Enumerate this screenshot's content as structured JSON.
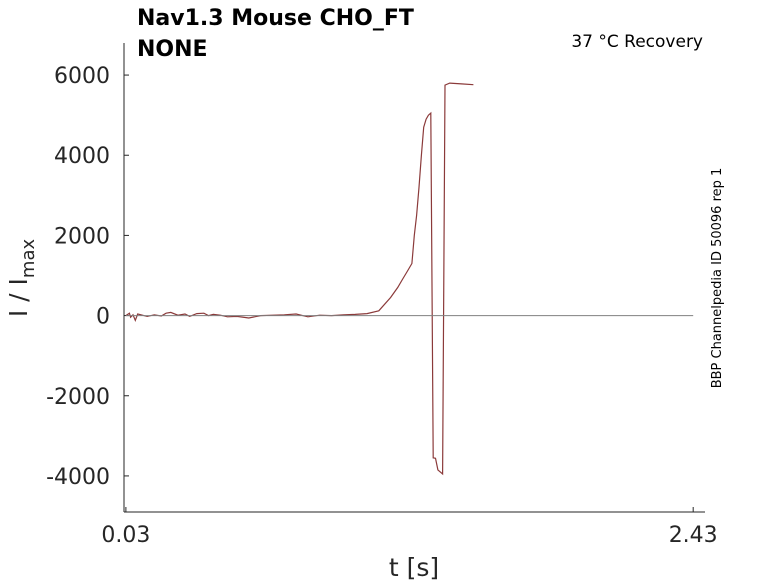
{
  "header": {
    "title_line1": "Nav1.3  Mouse  CHO_FT",
    "title_line2": "NONE",
    "condition": "37 °C  Recovery",
    "side_label": "BBP Channelpedia ID 50096 rep 1"
  },
  "chart_data": {
    "type": "line",
    "xlabel": "t [s]",
    "ylabel_main": "I / I",
    "ylabel_sub": "max",
    "xlim": [
      0.022,
      2.48
    ],
    "ylim": [
      -4900,
      6800
    ],
    "xticks": [
      {
        "value": 0.03,
        "label": "0.03"
      },
      {
        "value": 2.43,
        "label": "2.43"
      }
    ],
    "yticks": [
      {
        "value": 6000,
        "label": "6000"
      },
      {
        "value": 4000,
        "label": "4000"
      },
      {
        "value": 2000,
        "label": "2000"
      },
      {
        "value": 0,
        "label": "0"
      },
      {
        "value": -2000,
        "label": "-2000"
      },
      {
        "value": -4000,
        "label": "-4000"
      }
    ],
    "grid": false,
    "series": [
      {
        "color": "#8b3a3a",
        "x": [
          0.03,
          0.045,
          0.05,
          0.06,
          0.07,
          0.08,
          0.1,
          0.12,
          0.15,
          0.18,
          0.2,
          0.22,
          0.25,
          0.28,
          0.3,
          0.33,
          0.36,
          0.38,
          0.4,
          0.43,
          0.46,
          0.5,
          0.55,
          0.6,
          0.65,
          0.7,
          0.75,
          0.8,
          0.85,
          0.9,
          0.95,
          1.0,
          1.05,
          1.1,
          1.15,
          1.18,
          1.2,
          1.22,
          1.24,
          1.25,
          1.26,
          1.27,
          1.28,
          1.29,
          1.3,
          1.31,
          1.32,
          1.33,
          1.34,
          1.35,
          1.37,
          1.38,
          1.4,
          1.45,
          1.5
        ],
        "y": [
          0,
          60,
          -40,
          20,
          -120,
          40,
          10,
          -20,
          20,
          -10,
          60,
          80,
          10,
          40,
          -20,
          50,
          60,
          0,
          30,
          10,
          -30,
          -20,
          -60,
          0,
          10,
          20,
          40,
          -30,
          10,
          0,
          20,
          30,
          50,
          120,
          450,
          700,
          900,
          1100,
          1300,
          2000,
          2500,
          3200,
          4000,
          4700,
          4900,
          5000,
          5050,
          -3550,
          -3560,
          -3850,
          -3950,
          5750,
          5800,
          5780,
          5760
        ]
      },
      {
        "color": "#808080",
        "x": [
          0.03,
          0.5,
          1.0,
          1.5,
          2.0,
          2.43
        ],
        "y": [
          0,
          0,
          0,
          0,
          0,
          0
        ]
      }
    ]
  }
}
